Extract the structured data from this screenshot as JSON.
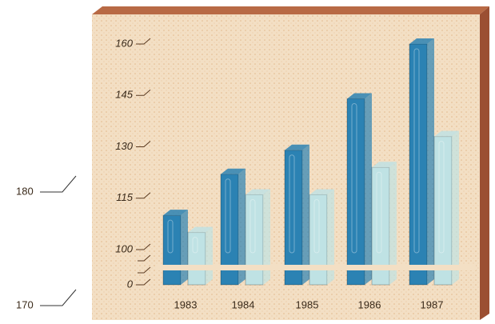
{
  "chart_data": {
    "type": "bar3d",
    "categories": [
      "1983",
      "1984",
      "1985",
      "1986",
      "1987"
    ],
    "series": [
      {
        "color": "#2b82b3",
        "values": [
          110,
          122,
          129,
          144,
          160
        ]
      },
      {
        "color": "#bfe2e4",
        "values": [
          105,
          116,
          116,
          124,
          133
        ]
      }
    ],
    "ylim": [
      0,
      160
    ],
    "yticks": [
      0,
      100,
      115,
      130,
      145,
      160
    ],
    "axis_break": [
      0,
      100
    ],
    "annotations": [
      "180",
      "170"
    ]
  }
}
